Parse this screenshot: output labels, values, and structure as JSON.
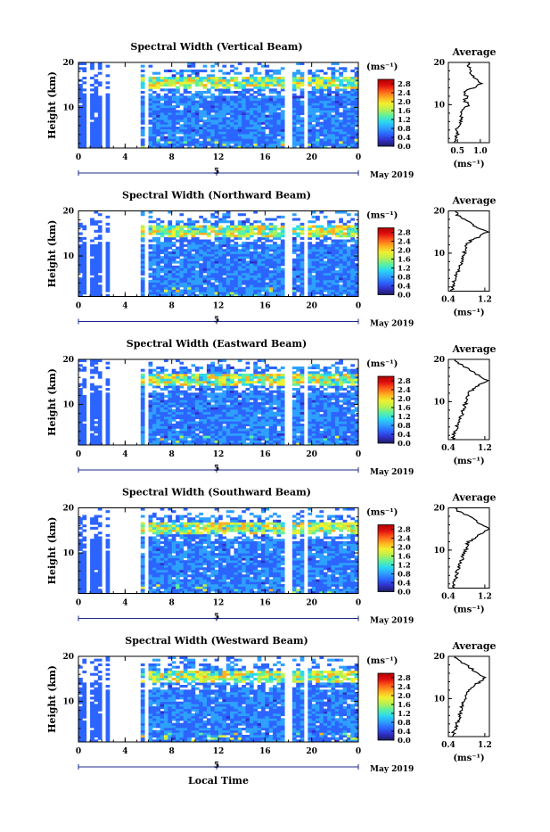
{
  "chart_data": [
    {
      "type": "heatmap",
      "title": "Spectral Width (Vertical Beam)",
      "ylabel": "Height (km)",
      "xticks": [
        "0",
        "4",
        "8",
        "12",
        "16",
        "20",
        "0"
      ],
      "yticks": [
        "20",
        "10"
      ],
      "xlim": [
        0,
        24
      ],
      "ylim": [
        1,
        20
      ],
      "date_tick": "5",
      "date_label": "May 2019",
      "colorbar": {
        "unit": "(ms⁻¹)",
        "ticks": [
          "2.8",
          "2.4",
          "2.0",
          "1.6",
          "1.2",
          "0.8",
          "0.4",
          "0.0"
        ],
        "range": [
          0.0,
          3.0
        ]
      },
      "average": {
        "title": "Average",
        "xticks": [
          "0.5",
          "1.0"
        ],
        "xlabel": "(ms⁻¹)",
        "xlim": [
          0.3,
          1.2
        ],
        "yticks": [
          "20",
          "10"
        ],
        "height_km": [
          1,
          2,
          3,
          4,
          5,
          6,
          7,
          8,
          9,
          10,
          11,
          12,
          13,
          14,
          15,
          16,
          17,
          18,
          19,
          20
        ],
        "width_ms": [
          0.45,
          0.47,
          0.5,
          0.48,
          0.52,
          0.56,
          0.6,
          0.58,
          0.62,
          0.75,
          0.65,
          0.7,
          0.62,
          0.85,
          1.0,
          0.95,
          0.8,
          0.78,
          0.75,
          0.72
        ]
      }
    },
    {
      "type": "heatmap",
      "title": "Spectral Width (Northward Beam)",
      "ylabel": "Height (km)",
      "xticks": [
        "0",
        "4",
        "8",
        "12",
        "16",
        "20",
        "0"
      ],
      "yticks": [
        "20",
        "10"
      ],
      "xlim": [
        0,
        24
      ],
      "ylim": [
        1,
        20
      ],
      "date_tick": "5",
      "date_label": "May 2019",
      "colorbar": {
        "unit": "(ms⁻¹)",
        "ticks": [
          "2.8",
          "2.4",
          "2.0",
          "1.6",
          "1.2",
          "0.8",
          "0.4",
          "0.0"
        ],
        "range": [
          0.0,
          3.0
        ]
      },
      "average": {
        "title": "Average",
        "xticks": [
          "0.4",
          "1.2"
        ],
        "xlabel": "(ms⁻¹)",
        "xlim": [
          0.4,
          1.3
        ],
        "yticks": [
          "20",
          "10"
        ],
        "height_km": [
          1,
          2,
          3,
          4,
          5,
          6,
          7,
          8,
          9,
          10,
          11,
          12,
          13,
          14,
          15,
          16,
          17,
          18,
          19,
          20
        ],
        "width_ms": [
          0.48,
          0.5,
          0.52,
          0.55,
          0.58,
          0.62,
          0.65,
          0.7,
          0.72,
          0.75,
          0.78,
          0.8,
          0.9,
          1.1,
          1.25,
          1.05,
          0.9,
          0.75,
          0.6,
          0.55
        ]
      }
    },
    {
      "type": "heatmap",
      "title": "Spectral Width (Eastward Beam)",
      "ylabel": "Height (km)",
      "xticks": [
        "0",
        "4",
        "8",
        "12",
        "16",
        "20",
        "0"
      ],
      "yticks": [
        "20",
        "10"
      ],
      "xlim": [
        0,
        24
      ],
      "ylim": [
        1,
        20
      ],
      "date_tick": "5",
      "date_label": "May 2019",
      "colorbar": {
        "unit": "(ms⁻¹)",
        "ticks": [
          "2.8",
          "2.4",
          "2.0",
          "1.6",
          "1.2",
          "0.8",
          "0.4",
          "0.0"
        ],
        "range": [
          0.0,
          3.0
        ]
      },
      "average": {
        "title": "Average",
        "xticks": [
          "0.4",
          "1.2"
        ],
        "xlabel": "(ms⁻¹)",
        "xlim": [
          0.4,
          1.3
        ],
        "yticks": [
          "20",
          "10"
        ],
        "height_km": [
          1,
          2,
          3,
          4,
          5,
          6,
          7,
          8,
          9,
          10,
          11,
          12,
          13,
          14,
          15,
          16,
          17,
          18,
          19,
          20
        ],
        "width_ms": [
          0.5,
          0.52,
          0.55,
          0.58,
          0.62,
          0.65,
          0.7,
          0.72,
          0.75,
          0.8,
          0.82,
          0.85,
          0.95,
          1.1,
          1.25,
          1.1,
          0.95,
          0.8,
          0.65,
          0.55
        ]
      }
    },
    {
      "type": "heatmap",
      "title": "Spectral Width (Southward Beam)",
      "ylabel": "Height (km)",
      "xticks": [
        "0",
        "4",
        "8",
        "12",
        "16",
        "20",
        "0"
      ],
      "yticks": [
        "20",
        "10"
      ],
      "xlim": [
        0,
        24
      ],
      "ylim": [
        1,
        20
      ],
      "date_tick": "5",
      "date_label": "May 2019",
      "colorbar": {
        "unit": "(ms⁻¹)",
        "ticks": [
          "2.8",
          "2.4",
          "2.0",
          "1.6",
          "1.2",
          "0.8",
          "0.4",
          "0.0"
        ],
        "range": [
          0.0,
          3.0
        ]
      },
      "average": {
        "title": "Average",
        "xticks": [
          "0.4",
          "1.2"
        ],
        "xlabel": "(ms⁻¹)",
        "xlim": [
          0.4,
          1.3
        ],
        "yticks": [
          "20",
          "10"
        ],
        "height_km": [
          1,
          2,
          3,
          4,
          5,
          6,
          7,
          8,
          9,
          10,
          11,
          12,
          13,
          14,
          15,
          16,
          17,
          18,
          19,
          20
        ],
        "width_ms": [
          0.5,
          0.52,
          0.55,
          0.58,
          0.6,
          0.63,
          0.68,
          0.7,
          0.72,
          0.78,
          0.8,
          0.85,
          1.0,
          1.15,
          1.28,
          1.15,
          1.0,
          0.85,
          0.65,
          0.55
        ]
      }
    },
    {
      "type": "heatmap",
      "title": "Spectral Width (Westward Beam)",
      "ylabel": "Height (km)",
      "xticks": [
        "0",
        "4",
        "8",
        "12",
        "16",
        "20",
        "0"
      ],
      "yticks": [
        "20",
        "10"
      ],
      "xlim": [
        0,
        24
      ],
      "ylim": [
        1,
        20
      ],
      "date_tick": "5",
      "date_label": "May 2019",
      "colorbar": {
        "unit": "(ms⁻¹)",
        "ticks": [
          "2.8",
          "2.4",
          "2.0",
          "1.6",
          "1.2",
          "0.8",
          "0.4",
          "0.0"
        ],
        "range": [
          0.0,
          3.0
        ]
      },
      "average": {
        "title": "Average",
        "xticks": [
          "0.4",
          "1.2"
        ],
        "xlabel": "(ms⁻¹)",
        "xlim": [
          0.4,
          1.3
        ],
        "yticks": [
          "20",
          "10"
        ],
        "height_km": [
          1,
          2,
          3,
          4,
          5,
          6,
          7,
          8,
          9,
          10,
          11,
          12,
          13,
          14,
          15,
          16,
          17,
          18,
          19,
          20
        ],
        "width_ms": [
          0.5,
          0.52,
          0.55,
          0.58,
          0.62,
          0.65,
          0.68,
          0.7,
          0.72,
          0.78,
          0.8,
          0.82,
          0.95,
          1.1,
          1.2,
          1.05,
          0.92,
          0.78,
          0.62,
          0.55
        ]
      }
    }
  ],
  "shared": {
    "xlabel": "Local Time",
    "data_gaps_hours": [
      [
        0.7,
        1.1
      ],
      [
        1.9,
        2.4
      ],
      [
        2.6,
        5.4
      ],
      [
        5.8,
        5.9
      ],
      [
        17.8,
        18.2
      ],
      [
        19.2,
        19.6
      ]
    ],
    "colorscale": [
      "#1c1c60",
      "#3030c8",
      "#2c64ff",
      "#2ea0ff",
      "#2ad8f0",
      "#5cf0a0",
      "#b8f050",
      "#f0f030",
      "#ffb020",
      "#ff6018",
      "#e01010",
      "#b00000"
    ]
  }
}
